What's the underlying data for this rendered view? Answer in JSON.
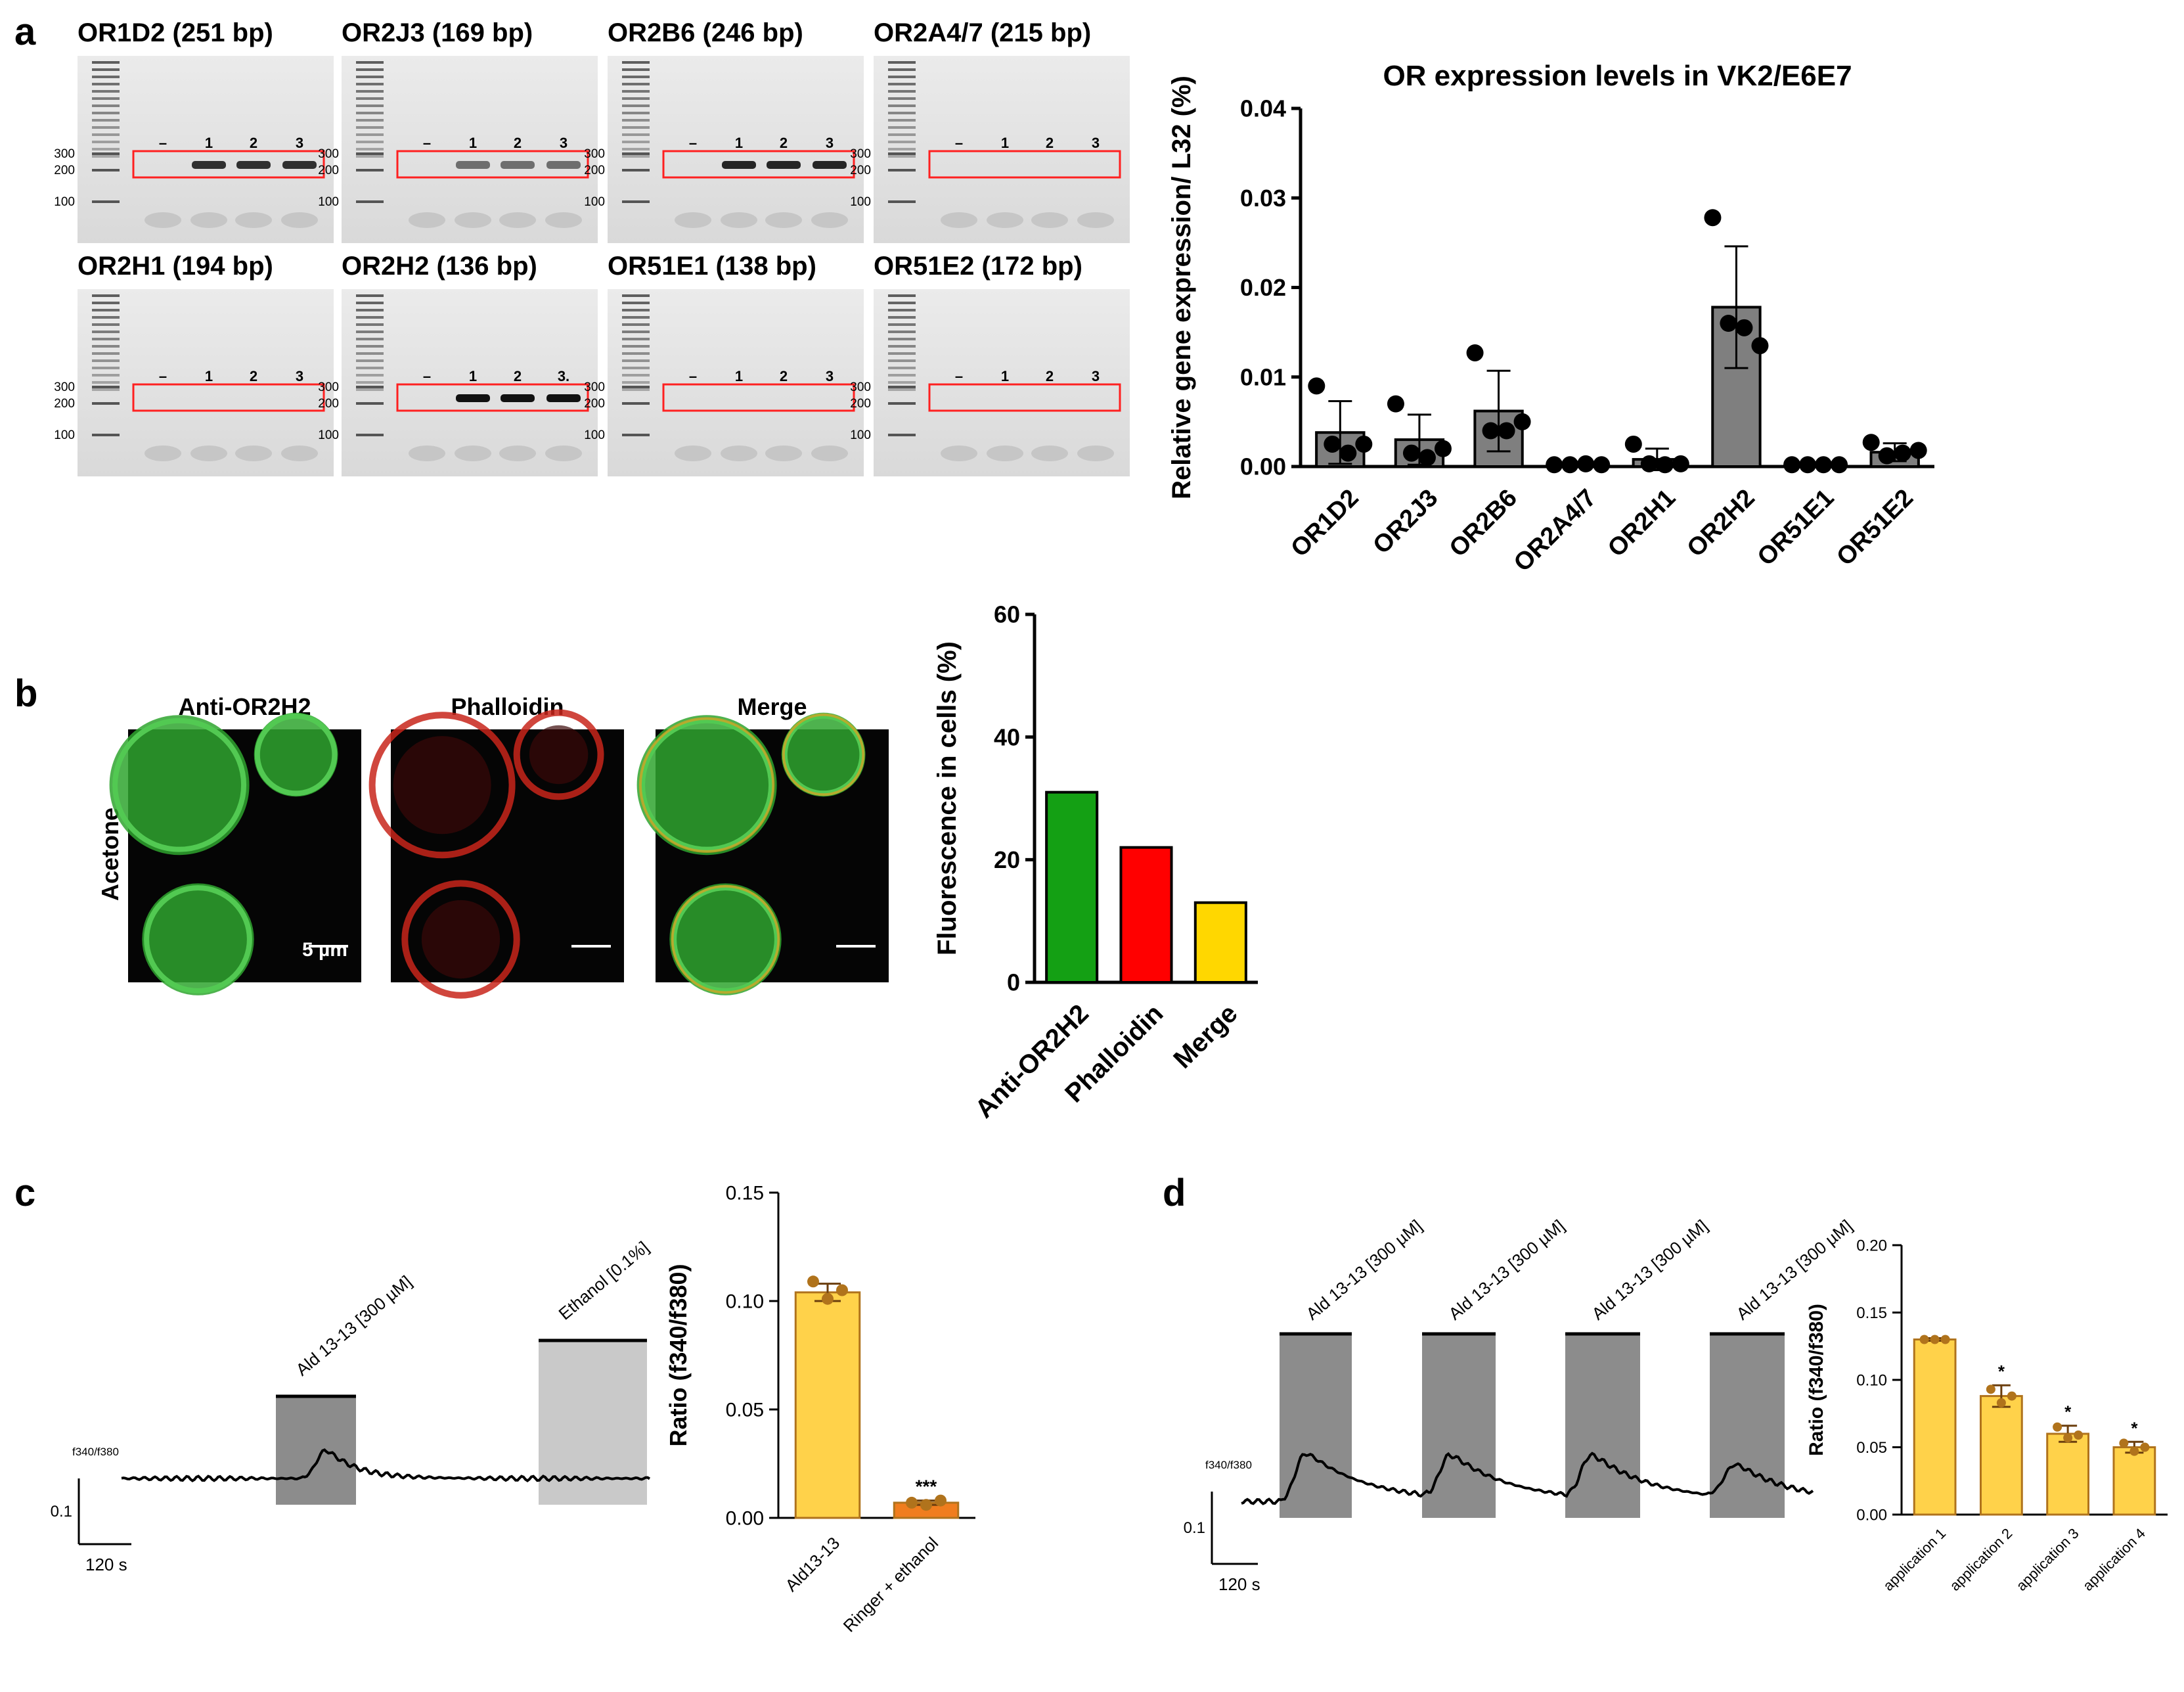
{
  "panel_labels": {
    "a": "a",
    "b": "b",
    "c": "c",
    "d": "d"
  },
  "gels": [
    {
      "title": "OR1D2 (251 bp)",
      "markers": [
        "300",
        "200",
        "100"
      ],
      "lanes": [
        "–",
        "1",
        "2",
        "3"
      ],
      "band_intensity": 0.85
    },
    {
      "title": "OR2J3 (169 bp)",
      "markers": [
        "300",
        "200",
        "100"
      ],
      "lanes": [
        "–",
        "1",
        "2",
        "3"
      ],
      "band_intensity": 0.55
    },
    {
      "title": "OR2B6 (246 bp)",
      "markers": [
        "300",
        "200",
        "100"
      ],
      "lanes": [
        "–",
        "1",
        "2",
        "3"
      ],
      "band_intensity": 0.9
    },
    {
      "title": "OR2A4/7 (215 bp)",
      "markers": [
        "300",
        "200",
        "100"
      ],
      "lanes": [
        "–",
        "1",
        "2",
        "3"
      ],
      "band_intensity": 0.0
    },
    {
      "title": "OR2H1 (194 bp)",
      "markers": [
        "300",
        "200",
        "100"
      ],
      "lanes": [
        "–",
        "1",
        "2",
        "3"
      ],
      "band_intensity": 0.0
    },
    {
      "title": "OR2H2 (136 bp)",
      "markers": [
        "300",
        "200",
        "100"
      ],
      "lanes": [
        "–",
        "1",
        "2",
        "3."
      ],
      "band_intensity": 1.0
    },
    {
      "title": "OR51E1 (138 bp)",
      "markers": [
        "300",
        "200",
        "100"
      ],
      "lanes": [
        "–",
        "1",
        "2",
        "3"
      ],
      "band_intensity": 0.0
    },
    {
      "title": "OR51E2 (172 bp)",
      "markers": [
        "300",
        "200",
        "100"
      ],
      "lanes": [
        "–",
        "1",
        "2",
        "3"
      ],
      "band_intensity": 0.0
    }
  ],
  "micro": {
    "row_label": "Acetone",
    "panels": [
      {
        "title": "Anti-OR2H2",
        "color": "#2fb52f"
      },
      {
        "title": "Phalloidin",
        "color": "#d42a1e"
      },
      {
        "title": "Merge",
        "color": "#2fb52f"
      }
    ],
    "scalebar_label": "5 µm"
  },
  "trace_c": {
    "ylabel": "f340/f380",
    "scale_y": "0.1",
    "scale_x": "120 s",
    "stimuli": [
      "Ald 13-13 [300 µM]",
      "Ethanol [0.1%]"
    ]
  },
  "trace_d": {
    "ylabel": "f340/f380",
    "scale_y": "0.1",
    "scale_x": "120 s",
    "stimuli": [
      "Ald 13-13 [300 µM]",
      "Ald 13-13 [300 µM]",
      "Ald 13-13 [300 µM]",
      "Ald 13-13 [300 µM]"
    ]
  },
  "chart_data": [
    {
      "id": "a",
      "type": "bar",
      "title": "OR expression levels in VK2/E6E7",
      "ylabel": "Relative gene expression/ L32 (%)",
      "xlabel": "",
      "categories": [
        "OR1D2",
        "OR2J3",
        "OR2B6",
        "OR2A4/7",
        "OR2H1",
        "OR2H2",
        "OR51E1",
        "OR51E2"
      ],
      "values": [
        0.0038,
        0.003,
        0.0062,
        0.0003,
        0.0008,
        0.0178,
        0.0002,
        0.0016
      ],
      "errors": [
        0.0035,
        0.0028,
        0.0045,
        0.0002,
        0.0012,
        0.0068,
        0.0001,
        0.001
      ],
      "points": [
        [
          0.009,
          0.0025,
          0.0015,
          0.0025
        ],
        [
          0.007,
          0.0015,
          0.001,
          0.002
        ],
        [
          0.0127,
          0.004,
          0.004,
          0.005
        ],
        [
          0.0002,
          0.0002,
          0.0003,
          0.0002
        ],
        [
          0.0025,
          0.0003,
          0.0002,
          0.0003
        ],
        [
          0.0278,
          0.016,
          0.0155,
          0.0135
        ],
        [
          0.0002,
          0.0002,
          0.0002,
          0.0002
        ],
        [
          0.0027,
          0.0012,
          0.0015,
          0.0018
        ]
      ],
      "ylim": [
        0,
        0.04
      ],
      "yticks": [
        "0.00",
        "0.01",
        "0.02",
        "0.03",
        "0.04"
      ],
      "bar_color": "#7f7f7f"
    },
    {
      "id": "b",
      "type": "bar",
      "title": "",
      "ylabel": "Fluorescence in cells (%)",
      "categories": [
        "Anti-OR2H2",
        "Phalloidin",
        "Merge"
      ],
      "values": [
        31,
        22,
        13
      ],
      "colors": [
        "#14a014",
        "#ff0000",
        "#ffd700"
      ],
      "ylim": [
        0,
        60
      ],
      "yticks": [
        "0",
        "20",
        "40",
        "60"
      ]
    },
    {
      "id": "c",
      "type": "bar",
      "title": "",
      "ylabel": "Ratio (f340/f380)",
      "categories": [
        "Ald13-13",
        "Ringer + ethanol"
      ],
      "values": [
        0.104,
        0.007
      ],
      "errors": [
        0.004,
        0.001
      ],
      "points": [
        [
          0.109,
          0.101,
          0.105
        ],
        [
          0.007,
          0.006,
          0.008
        ]
      ],
      "colors": [
        "#ffd24a",
        "#f07d1e"
      ],
      "significance": [
        "",
        "***"
      ],
      "ylim": [
        0,
        0.15
      ],
      "yticks": [
        "0.00",
        "0.05",
        "0.10",
        "0.15"
      ]
    },
    {
      "id": "d",
      "type": "bar",
      "title": "",
      "ylabel": "Ratio (f340/f380)",
      "categories": [
        "application 1",
        "application 2",
        "application 3",
        "application 4"
      ],
      "values": [
        0.13,
        0.088,
        0.06,
        0.05
      ],
      "errors": [
        0.001,
        0.008,
        0.006,
        0.004
      ],
      "points": [
        [
          0.13,
          0.13,
          0.13
        ],
        [
          0.093,
          0.083,
          0.088
        ],
        [
          0.065,
          0.057,
          0.059
        ],
        [
          0.053,
          0.047,
          0.05
        ]
      ],
      "colors": [
        "#ffd24a",
        "#ffd24a",
        "#ffd24a",
        "#ffd24a"
      ],
      "significance": [
        "",
        "*",
        "*",
        "*"
      ],
      "ylim": [
        0,
        0.2
      ],
      "yticks": [
        "0.00",
        "0.05",
        "0.10",
        "0.15",
        "0.20"
      ]
    }
  ]
}
